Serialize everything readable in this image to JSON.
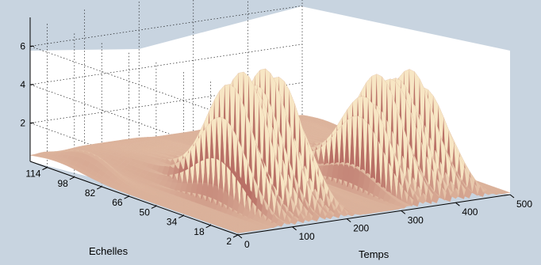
{
  "chart_data": {
    "type": "surface",
    "title": "",
    "xlabel": "Temps",
    "ylabel": "Echelles",
    "zlabel": "",
    "x_ticks": [
      "0",
      "100",
      "200",
      "300",
      "400",
      "500"
    ],
    "y_ticks": [
      "114",
      "98",
      "82",
      "66",
      "50",
      "34",
      "18",
      "2"
    ],
    "z_ticks": [
      "2",
      "4",
      "6"
    ],
    "xlim": [
      0,
      500
    ],
    "ylim": [
      2,
      124
    ],
    "zlim": [
      0,
      7.5
    ],
    "grid": true,
    "colormap": "pink",
    "bursts": [
      {
        "t_start": 60,
        "t_end": 230,
        "oscillation_count": 13,
        "peak_scale": 38,
        "peak_amplitude": 6.6
      },
      {
        "t_start": 300,
        "t_end": 480,
        "oscillation_count": 15,
        "peak_scale": 34,
        "peak_amplitude": 5.6
      }
    ]
  },
  "colors": {
    "background": "#c8d4e0",
    "axes_face": "#ffffff",
    "surface_light": "#f7e6c4",
    "surface_dark": "#b97066"
  }
}
